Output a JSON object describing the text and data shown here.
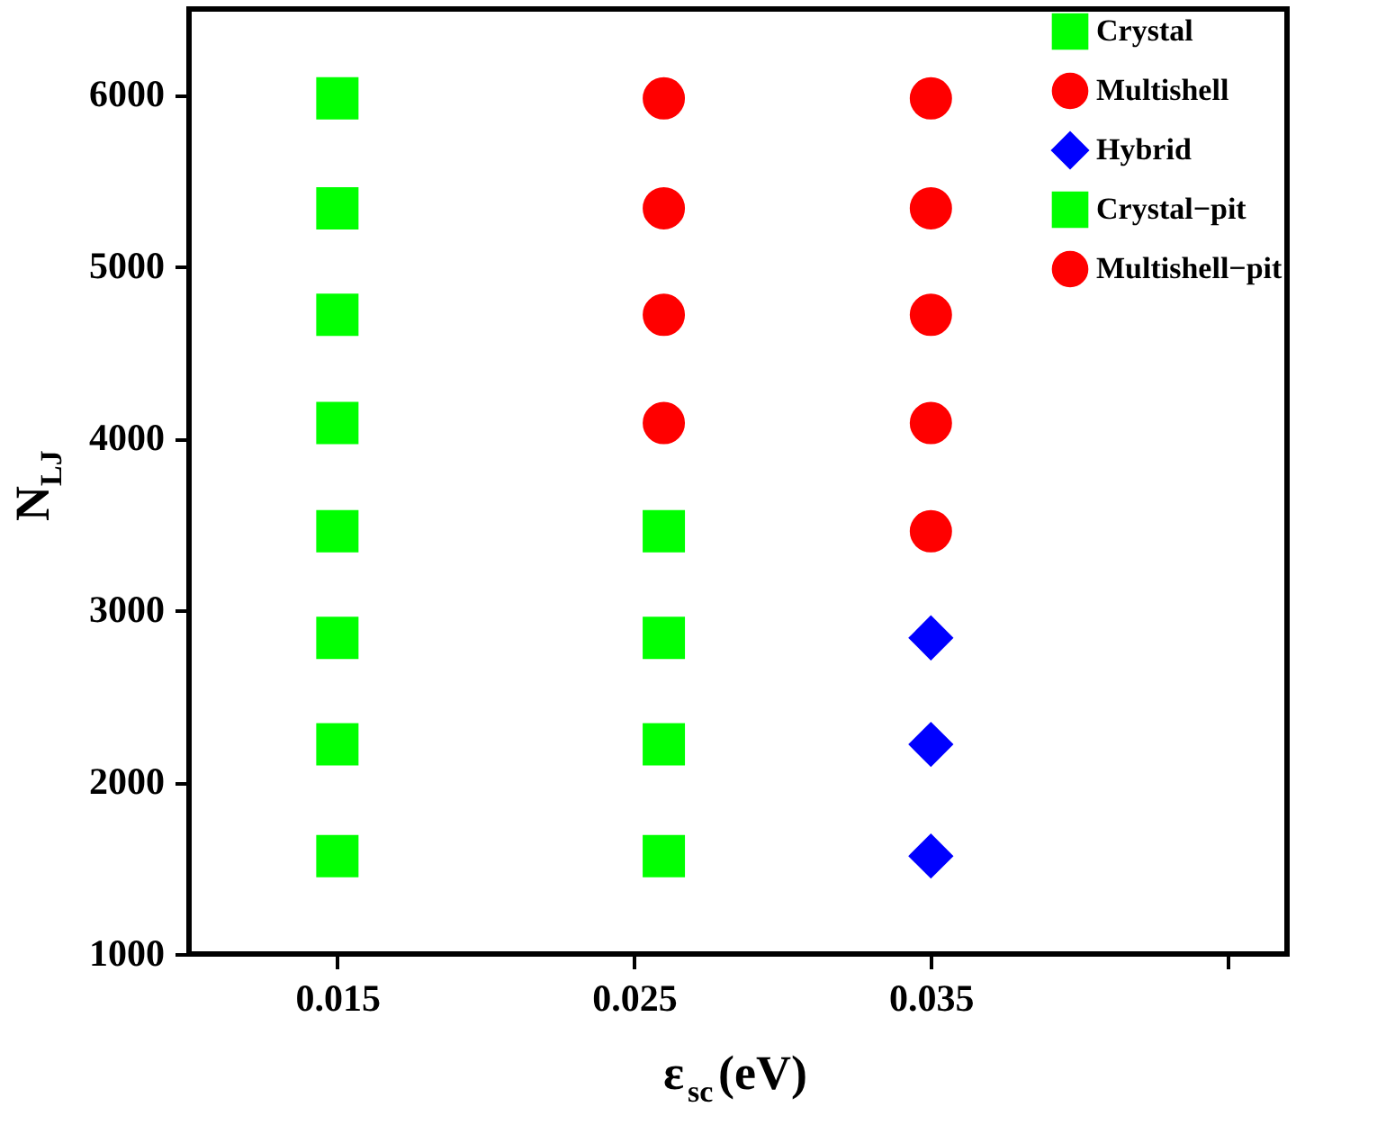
{
  "chart_data": {
    "type": "scatter",
    "xlabel": "ε$_{sc}$(eV)",
    "ylabel": "N$_{LJ}$",
    "xlim": [
      0.01,
      0.047
    ],
    "xticks": [
      0.015,
      0.025,
      0.035,
      {
        "value": 0.045,
        "label": null
      }
    ],
    "ylim": [
      1000,
      6500
    ],
    "yticks": [
      1000,
      2000,
      3000,
      4000,
      5000,
      6000
    ],
    "grid": false,
    "legend": "top right",
    "series": [
      {
        "name": "Crystal",
        "color": "#00ff00",
        "marker": "square",
        "x": [
          0.015,
          0.015,
          0.015,
          0.015,
          0.015,
          0.015,
          0.015,
          0.026,
          0.026,
          0.026,
          0.026
        ],
        "values": [
          1570,
          2220,
          2840,
          3460,
          4090,
          4720,
          5340,
          1570,
          2220,
          2840,
          3460
        ]
      },
      {
        "name": "Multishell",
        "color": "#ff0000",
        "marker": "circle",
        "x": [
          0.026,
          0.026,
          0.026,
          0.035,
          0.035,
          0.035,
          0.035,
          0.035
        ],
        "values": [
          4090,
          4720,
          5340,
          3460,
          4090,
          4720,
          5340,
          5980
        ]
      },
      {
        "name": "Hybrid",
        "color": "#0000ff",
        "marker": "diamond",
        "x": [
          0.035,
          0.035,
          0.035
        ],
        "values": [
          1570,
          2220,
          2840
        ]
      },
      {
        "name": "Crystal−pit",
        "color": "#00ff00",
        "marker": "square",
        "x": [
          0.015
        ],
        "values": [
          5980
        ]
      },
      {
        "name": "Multishell−pit",
        "color": "#ff0000",
        "marker": "circle",
        "x": [
          0.026
        ],
        "values": [
          5980
        ]
      }
    ]
  }
}
